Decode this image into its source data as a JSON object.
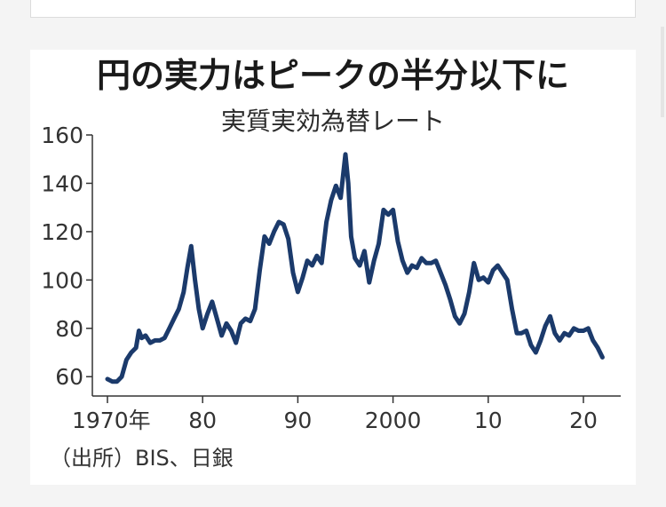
{
  "colors": {
    "series": "#1b3a6b"
  },
  "chart_data": {
    "type": "line",
    "title": "円の実力はピークの半分以下に",
    "subtitle": "実質実効為替レート",
    "xlabel": "",
    "ylabel": "",
    "xlim": [
      1969,
      2022
    ],
    "ylim": [
      52,
      160
    ],
    "y_ticks": [
      60,
      80,
      100,
      120,
      140,
      160
    ],
    "x_tick_values": [
      1970,
      1980,
      1990,
      2000,
      2010,
      2020
    ],
    "x_tick_labels": [
      "1970年",
      "80",
      "90",
      "2000",
      "10",
      "20"
    ],
    "source": "（出所）BIS、日銀",
    "grid": false,
    "legend": "none",
    "series": [
      {
        "x": [
          1970,
          1970.5,
          1971,
          1971.5,
          1972,
          1972.5,
          1973,
          1973.3,
          1973.6,
          1974,
          1974.5,
          1975,
          1975.5,
          1976,
          1976.5,
          1977,
          1977.5,
          1978,
          1978.4,
          1978.8,
          1979.2,
          1979.6,
          1980,
          1980.5,
          1981,
          1981.5,
          1982,
          1982.5,
          1983,
          1983.5,
          1984,
          1984.5,
          1985,
          1985.5,
          1986,
          1986.5,
          1987,
          1987.5,
          1988,
          1988.5,
          1989,
          1989.5,
          1990,
          1990.5,
          1991,
          1991.5,
          1992,
          1992.5,
          1993,
          1993.5,
          1994,
          1994.5,
          1995,
          1995.3,
          1995.6,
          1996,
          1996.5,
          1997,
          1997.5,
          1998,
          1998.5,
          1999,
          1999.5,
          2000,
          2000.5,
          2001,
          2001.5,
          2002,
          2002.5,
          2003,
          2003.5,
          2004,
          2004.5,
          2005,
          2005.5,
          2006,
          2006.5,
          2007,
          2007.5,
          2008,
          2008.5,
          2009,
          2009.5,
          2010,
          2010.5,
          2011,
          2011.5,
          2012,
          2012.5,
          2013,
          2013.5,
          2014,
          2014.5,
          2015,
          2015.5,
          2016,
          2016.5,
          2017,
          2017.5,
          2018,
          2018.5,
          2019,
          2019.5,
          2020,
          2020.5,
          2021,
          2021.5,
          2022
        ],
        "values": [
          59,
          58,
          58,
          60,
          67,
          70,
          72,
          79,
          76,
          77,
          74,
          75,
          75,
          76,
          80,
          84,
          88,
          95,
          105,
          114,
          100,
          88,
          80,
          86,
          91,
          84,
          77,
          82,
          79,
          74,
          82,
          84,
          83,
          88,
          104,
          118,
          115,
          120,
          124,
          123,
          117,
          103,
          95,
          101,
          108,
          106,
          110,
          107,
          124,
          133,
          139,
          134,
          152,
          140,
          118,
          109,
          106,
          112,
          99,
          108,
          115,
          129,
          127,
          129,
          116,
          108,
          103,
          106,
          105,
          109,
          107,
          107,
          108,
          103,
          98,
          92,
          85,
          82,
          86,
          95,
          107,
          100,
          101,
          99,
          104,
          106,
          103,
          100,
          88,
          78,
          78,
          79,
          73,
          70,
          75,
          81,
          85,
          78,
          75,
          78,
          77,
          80,
          79,
          79,
          80,
          75,
          72,
          68
        ]
      }
    ]
  }
}
